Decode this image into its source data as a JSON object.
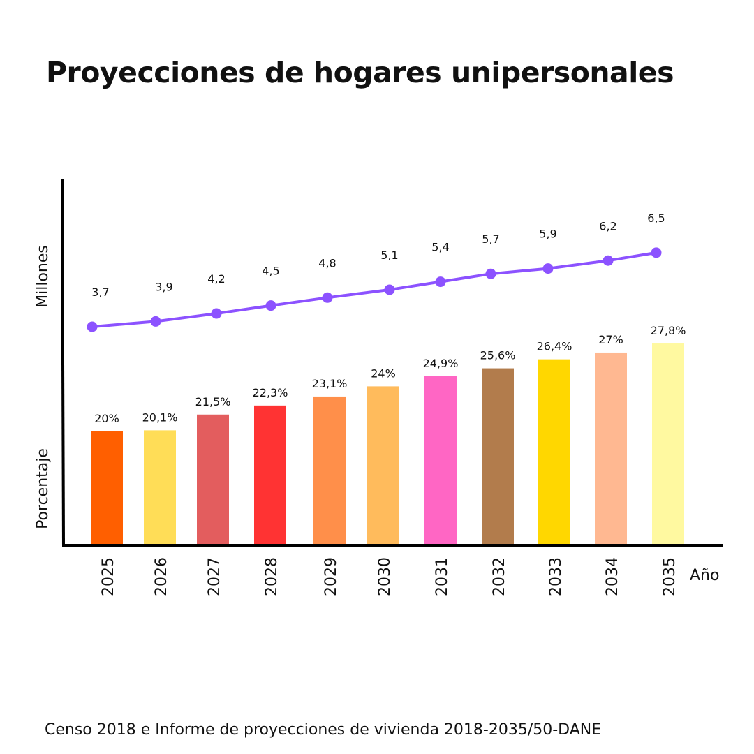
{
  "chart_data": {
    "type": "bar+line",
    "title": "Proyecciones de hogares unipersonales",
    "source": "Censo 2018 e Informe de proyecciones de vivienda 2018-2035/50-DANE",
    "xlabel": "Año",
    "ylabel_line": "Millones",
    "ylabel_bar": "Porcentaje",
    "categories": [
      "2025",
      "2026",
      "2027",
      "2028",
      "2029",
      "2030",
      "2031",
      "2032",
      "2033",
      "2034",
      "2035"
    ],
    "series": [
      {
        "type": "bar",
        "values": [
          20,
          20.1,
          21.5,
          22.3,
          23.1,
          24,
          24.9,
          25.6,
          26.4,
          27,
          27.8
        ],
        "labels": [
          "20%",
          "20,1%",
          "21,5%",
          "22,3%",
          "23,1%",
          "24%",
          "24,9%",
          "25,6%",
          "26,4%",
          "27%",
          "27,8%"
        ],
        "colors": [
          "#FF5F00",
          "#FFDD57",
          "#E35D5E",
          "#FF3333",
          "#FF8F4A",
          "#FFBB5C",
          "#FF66C4",
          "#B27C4C",
          "#FFD700",
          "#FFB891",
          "#FFF9A0"
        ]
      },
      {
        "type": "line",
        "values": [
          3.7,
          3.9,
          4.2,
          4.5,
          4.8,
          5.1,
          5.4,
          5.7,
          5.9,
          6.2,
          6.5
        ],
        "labels": [
          "3,7",
          "3,9",
          "4,2",
          "4,5",
          "4,8",
          "5,1",
          "5,4",
          "5,7",
          "5,9",
          "6,2",
          "6,5"
        ],
        "color": "#8C52FF"
      }
    ],
    "grid": false,
    "legend": "none"
  }
}
